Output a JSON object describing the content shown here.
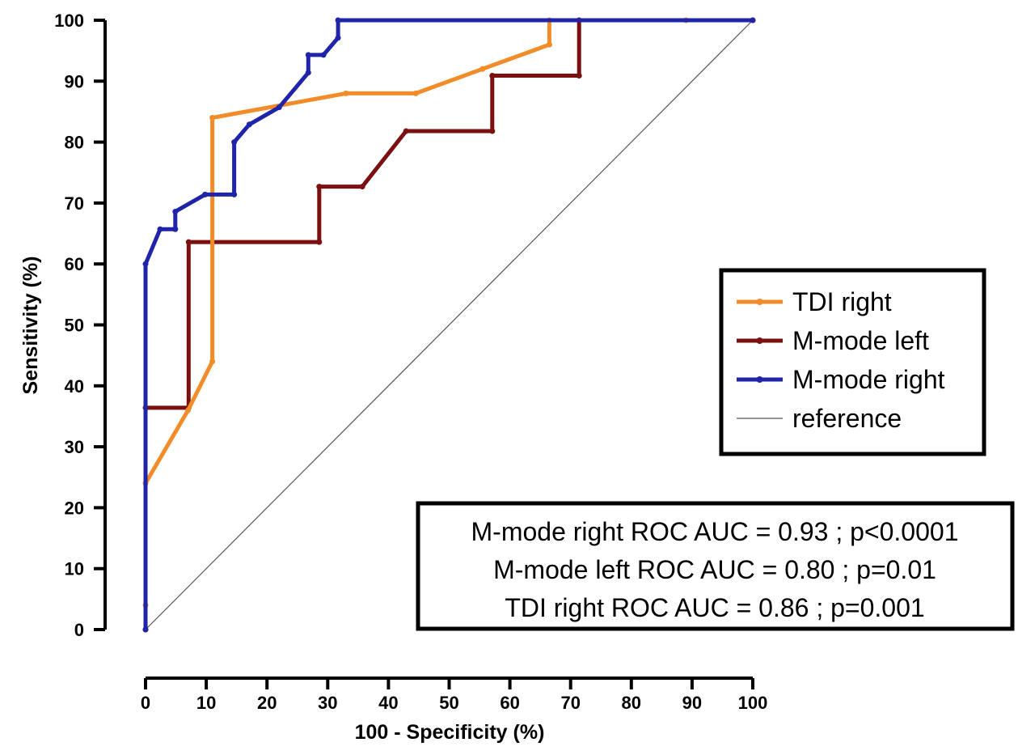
{
  "chart_data": {
    "type": "line",
    "title": "",
    "xlabel": "100 - Specificity (%)",
    "ylabel": "Sensitivity (%)",
    "xlim": [
      0,
      100
    ],
    "ylim": [
      0,
      100
    ],
    "xticks": [
      "0",
      "10",
      "20",
      "30",
      "40",
      "50",
      "60",
      "70",
      "80",
      "90",
      "100"
    ],
    "yticks": [
      "0",
      "10",
      "20",
      "30",
      "40",
      "50",
      "60",
      "70",
      "80",
      "90",
      "100"
    ],
    "grid": false,
    "legend_position": "right-middle",
    "series": [
      {
        "name": "TDI right",
        "color": "#F28C28",
        "points": [
          [
            0,
            4
          ],
          [
            0,
            24
          ],
          [
            7,
            36
          ],
          [
            11,
            44
          ],
          [
            11,
            84
          ],
          [
            33,
            88
          ],
          [
            44.5,
            88
          ],
          [
            55.5,
            92
          ],
          [
            66.5,
            96
          ],
          [
            66.5,
            100
          ],
          [
            89,
            100
          ],
          [
            100,
            100
          ]
        ]
      },
      {
        "name": "M-mode left",
        "color": "#7B1010",
        "points": [
          [
            0,
            0
          ],
          [
            0,
            36.4
          ],
          [
            7.1,
            36.4
          ],
          [
            7.1,
            63.6
          ],
          [
            28.6,
            63.6
          ],
          [
            28.6,
            72.7
          ],
          [
            35.7,
            72.7
          ],
          [
            42.9,
            81.8
          ],
          [
            57.1,
            81.8
          ],
          [
            57.1,
            90.9
          ],
          [
            71.4,
            90.9
          ],
          [
            71.4,
            100
          ],
          [
            100,
            100
          ]
        ]
      },
      {
        "name": "M-mode right",
        "color": "#1F24A8",
        "points": [
          [
            0,
            0
          ],
          [
            0,
            60
          ],
          [
            2.4,
            65.7
          ],
          [
            4.9,
            65.7
          ],
          [
            4.9,
            68.6
          ],
          [
            9.8,
            71.4
          ],
          [
            14.6,
            71.4
          ],
          [
            14.6,
            80
          ],
          [
            17.1,
            82.9
          ],
          [
            22,
            85.7
          ],
          [
            26.8,
            91.4
          ],
          [
            26.8,
            94.3
          ],
          [
            29.3,
            94.3
          ],
          [
            31.7,
            97.1
          ],
          [
            31.7,
            100
          ],
          [
            100,
            100
          ]
        ]
      },
      {
        "name": "reference",
        "color": "#555555",
        "points": [
          [
            0,
            0
          ],
          [
            100,
            100
          ]
        ]
      }
    ],
    "annotations": [
      "M-mode right ROC AUC = 0.93 ; p<0.0001",
      "M-mode left ROC AUC = 0.80 ; p=0.01",
      "TDI right ROC AUC = 0.86 ; p=0.001"
    ]
  }
}
